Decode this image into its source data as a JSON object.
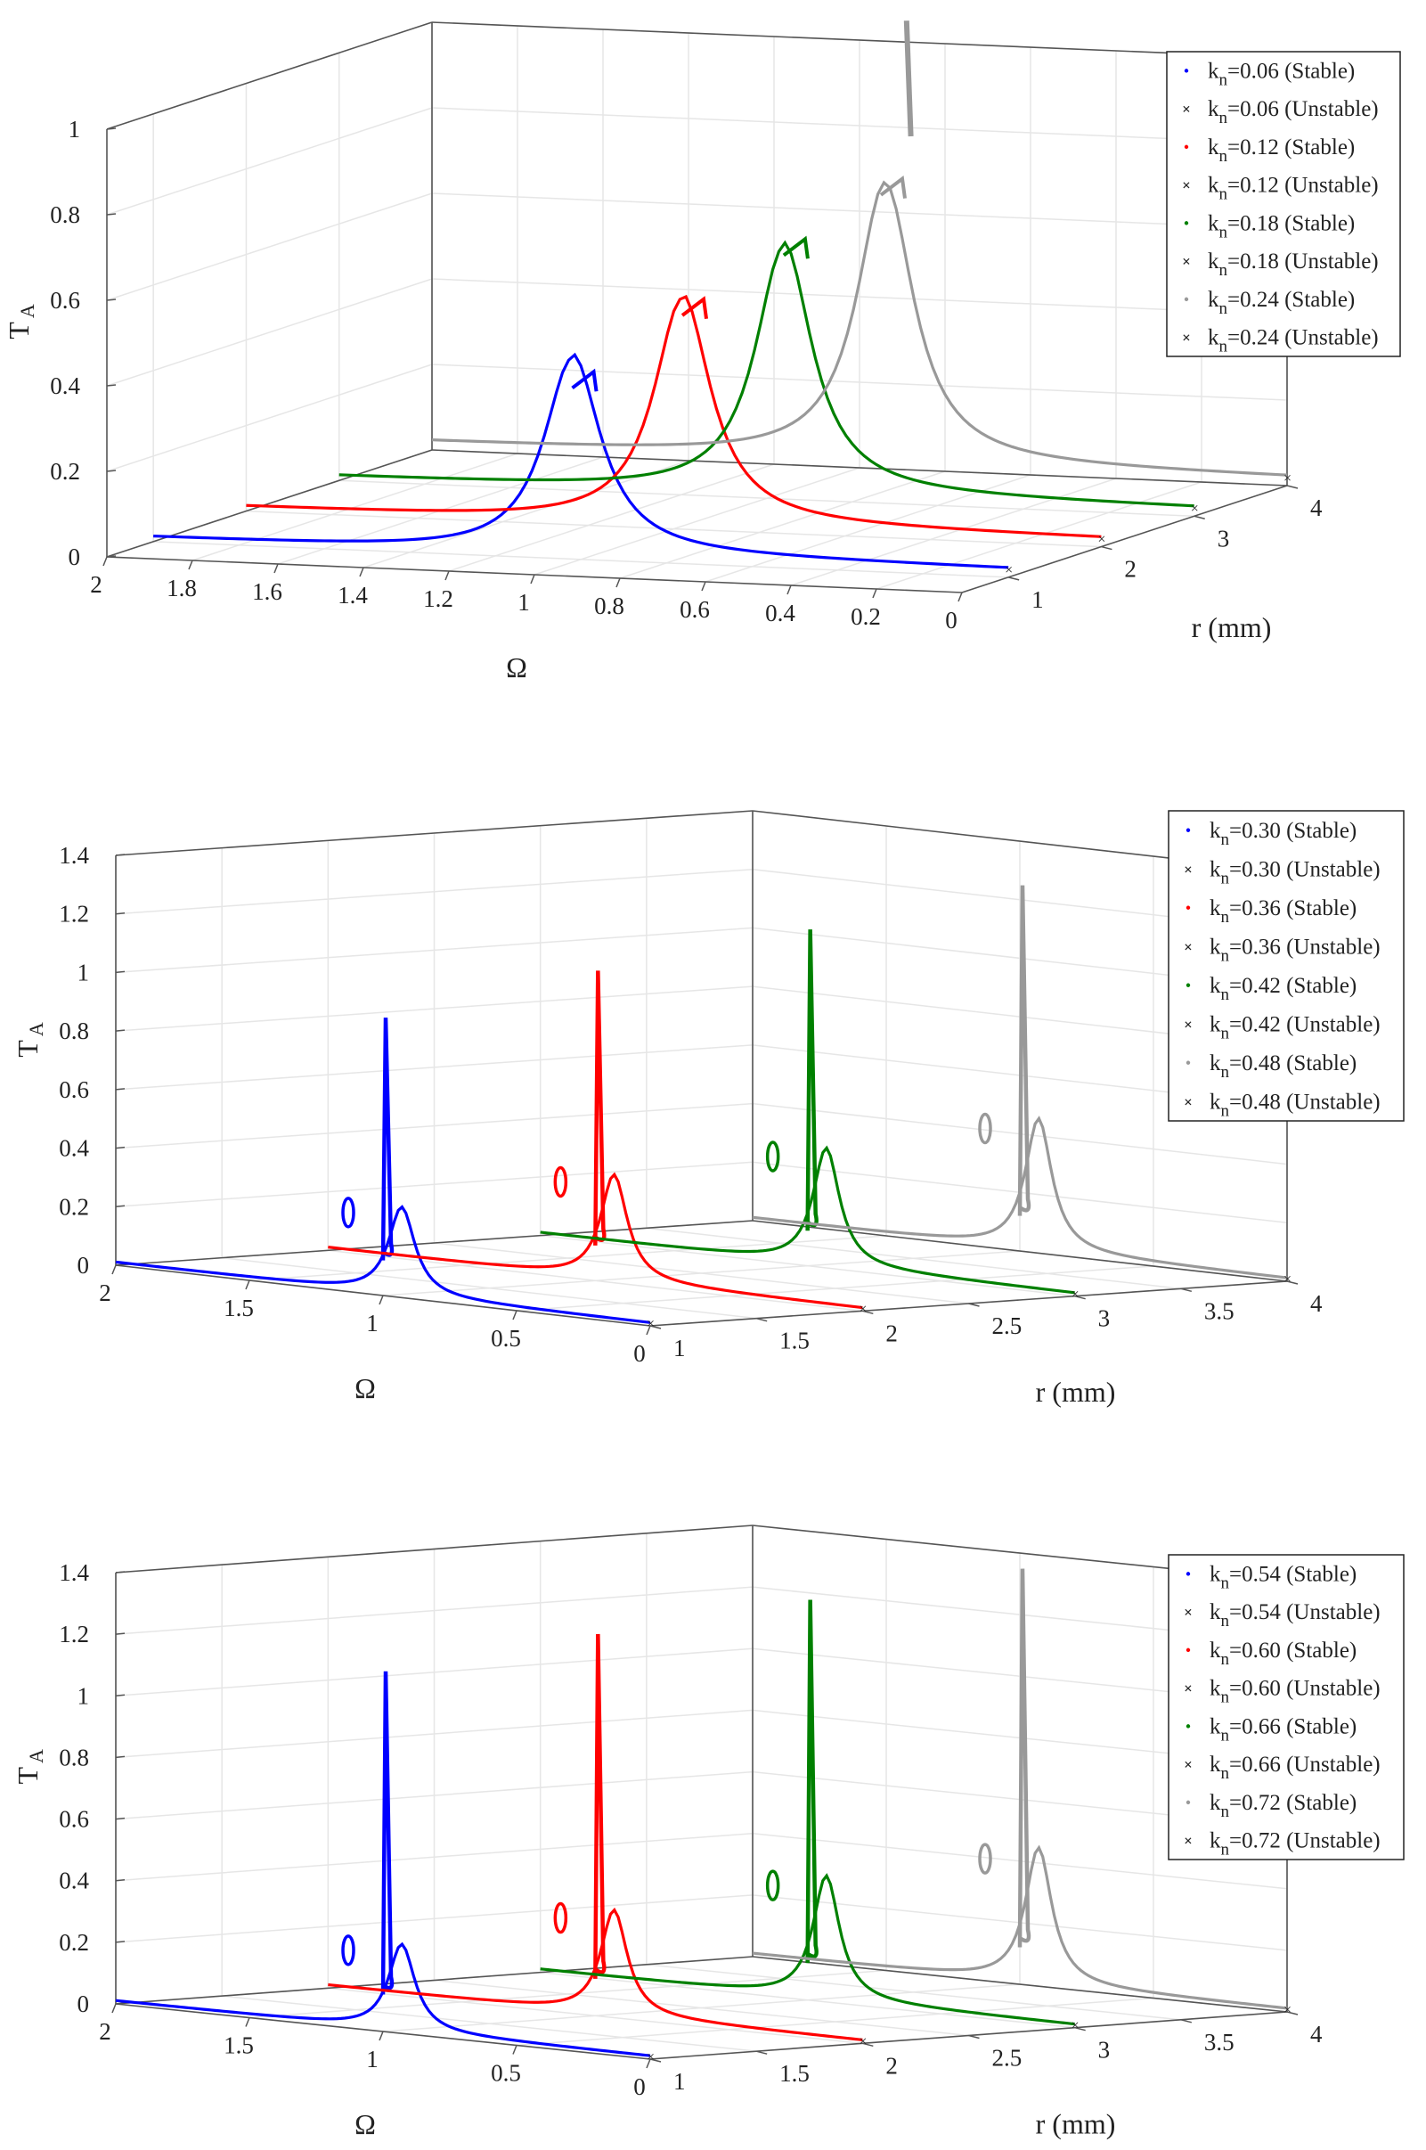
{
  "chart_data": [
    {
      "type": "line",
      "chart_id": "panel1",
      "xlabel": "Ω",
      "ylabel": "T",
      "ylabel_sub": "A",
      "zlabel": "r (mm)",
      "omega_range": [
        0,
        2
      ],
      "omega_ticks": [
        "2",
        "1.8",
        "1.6",
        "1.4",
        "1.2",
        "1",
        "0.8",
        "0.6",
        "0.4",
        "0.2",
        "0"
      ],
      "r_range": [
        0.5,
        4
      ],
      "r_ticks": [
        "1",
        "2",
        "3",
        "4"
      ],
      "ta_range": [
        0,
        1
      ],
      "ta_ticks": [
        "0",
        "0.2",
        "0.4",
        "0.6",
        "0.8",
        "1"
      ],
      "legend_position": "top-right",
      "series": [
        {
          "k": "0.06",
          "r": 1,
          "color": "#0000ff",
          "baseline": 0.01,
          "peak_omega": 1.02,
          "peak_ta": 0.46,
          "peak2_omega": 0.97,
          "peak2_ta": 0.44,
          "end_ta": 0.02
        },
        {
          "k": "0.12",
          "r": 2,
          "color": "#ff0000",
          "baseline": 0.01,
          "peak_omega": 0.98,
          "peak_ta": 0.53,
          "peak2_omega": 0.93,
          "peak2_ta": 0.54,
          "end_ta": 0.02
        },
        {
          "k": "0.18",
          "r": 3,
          "color": "#008000",
          "baseline": 0.01,
          "peak_omega": 0.96,
          "peak_ta": 0.58,
          "peak2_omega": 0.91,
          "peak2_ta": 0.61,
          "end_ta": 0.02
        },
        {
          "k": "0.24",
          "r": 4,
          "color": "#999999",
          "baseline": 0.02,
          "peak_omega": 0.94,
          "peak_ta": 0.65,
          "peak2_omega": 0.9,
          "peak2_ta": 0.68,
          "end_ta": 0.02,
          "upper_omega": 0.88,
          "upper_ta": [
            0.78,
            1.05
          ]
        }
      ],
      "legend": [
        {
          "k": "0.06",
          "state": "(Stable)",
          "color": "#0000ff",
          "marker": "dot"
        },
        {
          "k": "0.06",
          "state": "(Unstable)",
          "color": "#0000ff",
          "marker": "x"
        },
        {
          "k": "0.12",
          "state": "(Stable)",
          "color": "#ff0000",
          "marker": "dot"
        },
        {
          "k": "0.12",
          "state": "(Unstable)",
          "color": "#ff0000",
          "marker": "x"
        },
        {
          "k": "0.18",
          "state": "(Stable)",
          "color": "#008000",
          "marker": "dot"
        },
        {
          "k": "0.18",
          "state": "(Unstable)",
          "color": "#008000",
          "marker": "x"
        },
        {
          "k": "0.24",
          "state": "(Stable)",
          "color": "#999999",
          "marker": "dot"
        },
        {
          "k": "0.24",
          "state": "(Unstable)",
          "color": "#999999",
          "marker": "x"
        }
      ]
    },
    {
      "type": "line",
      "chart_id": "panel2",
      "xlabel": "Ω",
      "ylabel": "T",
      "ylabel_sub": "A",
      "zlabel": "r (mm)",
      "omega_range": [
        0,
        2
      ],
      "omega_ticks": [
        "2",
        "1.5",
        "1",
        "0.5",
        "0"
      ],
      "r_range": [
        1,
        4
      ],
      "r_ticks": [
        "1",
        "1.5",
        "2",
        "2.5",
        "3",
        "3.5",
        "4"
      ],
      "ta_range": [
        0,
        1.4
      ],
      "ta_ticks": [
        "0",
        "0.2",
        "0.4",
        "0.6",
        "0.8",
        "1",
        "1.2",
        "1.4"
      ],
      "legend_position": "top-right",
      "series": [
        {
          "k": "0.30",
          "r": 1,
          "color": "#0000ff",
          "baseline": 0.01,
          "peak_omega": 0.93,
          "peak_ta": 0.3,
          "spike_ta": 0.95,
          "end_ta": 0.01
        },
        {
          "k": "0.36",
          "r": 2,
          "color": "#ff0000",
          "baseline": 0.01,
          "peak_omega": 0.93,
          "peak_ta": 0.36,
          "spike_ta": 1.06,
          "end_ta": 0.01
        },
        {
          "k": "0.42",
          "r": 3,
          "color": "#008000",
          "baseline": 0.01,
          "peak_omega": 0.93,
          "peak_ta": 0.4,
          "spike_ta": 1.15,
          "end_ta": 0.01
        },
        {
          "k": "0.48",
          "r": 4,
          "color": "#999999",
          "baseline": 0.01,
          "peak_omega": 0.93,
          "peak_ta": 0.45,
          "spike_ta": 1.25,
          "end_ta": 0.01
        }
      ],
      "legend": [
        {
          "k": "0.30",
          "state": "(Stable)",
          "color": "#0000ff",
          "marker": "dot"
        },
        {
          "k": "0.30",
          "state": "(Unstable)",
          "color": "#0000ff",
          "marker": "x"
        },
        {
          "k": "0.36",
          "state": "(Stable)",
          "color": "#ff0000",
          "marker": "dot"
        },
        {
          "k": "0.36",
          "state": "(Unstable)",
          "color": "#ff0000",
          "marker": "x"
        },
        {
          "k": "0.42",
          "state": "(Stable)",
          "color": "#008000",
          "marker": "dot"
        },
        {
          "k": "0.42",
          "state": "(Unstable)",
          "color": "#008000",
          "marker": "x"
        },
        {
          "k": "0.48",
          "state": "(Stable)",
          "color": "#999999",
          "marker": "dot"
        },
        {
          "k": "0.48",
          "state": "(Unstable)",
          "color": "#999999",
          "marker": "x"
        }
      ]
    },
    {
      "type": "line",
      "chart_id": "panel3",
      "xlabel": "Ω",
      "ylabel": "T",
      "ylabel_sub": "A",
      "zlabel": "r (mm)",
      "omega_range": [
        0,
        2
      ],
      "omega_ticks": [
        "2",
        "1.5",
        "1",
        "0.5",
        "0"
      ],
      "r_range": [
        1,
        4
      ],
      "r_ticks": [
        "1",
        "1.5",
        "2",
        "2.5",
        "3",
        "3.5",
        "4"
      ],
      "ta_range": [
        0,
        1.4
      ],
      "ta_ticks": [
        "0",
        "0.2",
        "0.4",
        "0.6",
        "0.8",
        "1",
        "1.2",
        "1.4"
      ],
      "legend_position": "top-right",
      "series": [
        {
          "k": "0.54",
          "r": 1,
          "color": "#0000ff",
          "baseline": 0.01,
          "peak_omega": 0.93,
          "peak_ta": 0.28,
          "spike_ta": 1.17,
          "end_ta": 0.01
        },
        {
          "k": "0.60",
          "r": 2,
          "color": "#ff0000",
          "baseline": 0.01,
          "peak_omega": 0.93,
          "peak_ta": 0.34,
          "spike_ta": 1.24,
          "end_ta": 0.01
        },
        {
          "k": "0.66",
          "r": 3,
          "color": "#008000",
          "baseline": 0.01,
          "peak_omega": 0.93,
          "peak_ta": 0.4,
          "spike_ta": 1.3,
          "end_ta": 0.01
        },
        {
          "k": "0.72",
          "r": 4,
          "color": "#999999",
          "baseline": 0.01,
          "peak_omega": 0.93,
          "peak_ta": 0.44,
          "spike_ta": 1.35,
          "end_ta": 0.01
        }
      ],
      "legend": [
        {
          "k": "0.54",
          "state": "(Stable)",
          "color": "#0000ff",
          "marker": "dot"
        },
        {
          "k": "0.54",
          "state": "(Unstable)",
          "color": "#0000ff",
          "marker": "x"
        },
        {
          "k": "0.60",
          "state": "(Stable)",
          "color": "#ff0000",
          "marker": "dot"
        },
        {
          "k": "0.60",
          "state": "(Unstable)",
          "color": "#ff0000",
          "marker": "x"
        },
        {
          "k": "0.66",
          "state": "(Stable)",
          "color": "#008000",
          "marker": "dot"
        },
        {
          "k": "0.66",
          "state": "(Unstable)",
          "color": "#008000",
          "marker": "x"
        },
        {
          "k": "0.72",
          "state": "(Stable)",
          "color": "#999999",
          "marker": "dot"
        },
        {
          "k": "0.72",
          "state": "(Unstable)",
          "color": "#999999",
          "marker": "x"
        }
      ]
    }
  ]
}
